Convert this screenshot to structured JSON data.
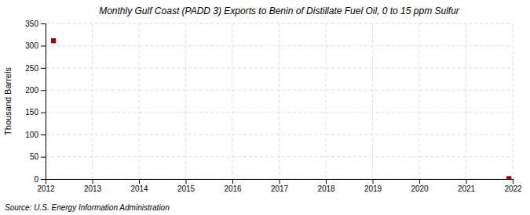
{
  "chart_data": {
    "type": "scatter",
    "title": "Monthly Gulf Coast (PADD 3) Exports to Benin of Distillate Fuel Oil, 0 to 15 ppm Sulfur",
    "ylabel": "Thousand Barrels",
    "source": "Source: U.S. Energy Information Administration",
    "x": [
      2012.17,
      2021.92
    ],
    "values": [
      311,
      1
    ],
    "color": "#aa0000",
    "marker": "square",
    "xlim": [
      2012,
      2022
    ],
    "ylim": [
      0,
      350
    ],
    "xticks": [
      2012,
      2013,
      2014,
      2015,
      2016,
      2017,
      2018,
      2019,
      2020,
      2021,
      2022
    ],
    "yticks": [
      0,
      50,
      100,
      150,
      200,
      250,
      300,
      350
    ],
    "grid": true
  }
}
